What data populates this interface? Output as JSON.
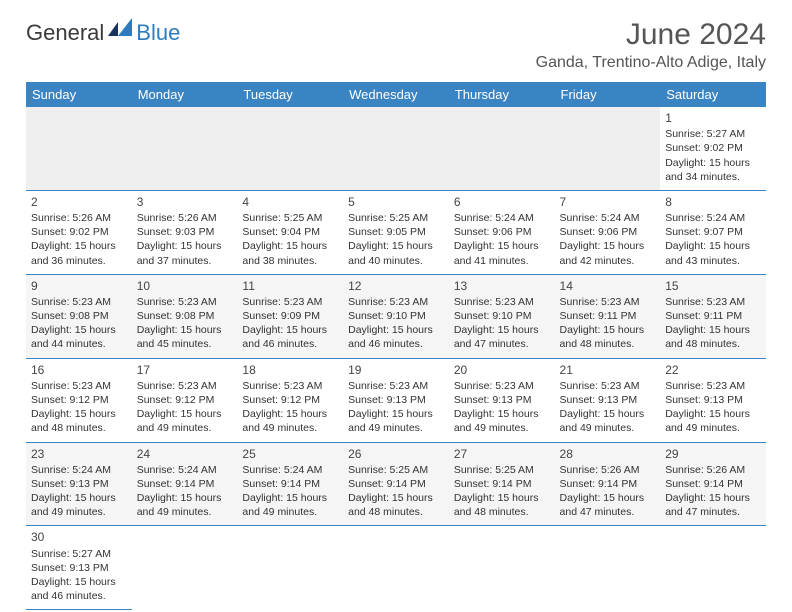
{
  "brand": {
    "part1": "General",
    "part2": "Blue"
  },
  "title": "June 2024",
  "location": "Ganda, Trentino-Alto Adige, Italy",
  "colors": {
    "header_bg": "#3b84c4",
    "header_text": "#ffffff",
    "brand_gray": "#3a3a3a",
    "brand_blue": "#2f7bbf",
    "text": "#333333",
    "grid_line": "#3b84c4",
    "alt_row_bg": "#efefef"
  },
  "day_headers": [
    "Sunday",
    "Monday",
    "Tuesday",
    "Wednesday",
    "Thursday",
    "Friday",
    "Saturday"
  ],
  "labels": {
    "sunrise": "Sunrise:",
    "sunset": "Sunset:",
    "daylight": "Daylight:"
  },
  "weeks": [
    [
      null,
      null,
      null,
      null,
      null,
      null,
      {
        "n": 1,
        "rise": "5:27 AM",
        "set": "9:02 PM",
        "dl": "15 hours and 34 minutes."
      }
    ],
    [
      {
        "n": 2,
        "rise": "5:26 AM",
        "set": "9:02 PM",
        "dl": "15 hours and 36 minutes."
      },
      {
        "n": 3,
        "rise": "5:26 AM",
        "set": "9:03 PM",
        "dl": "15 hours and 37 minutes."
      },
      {
        "n": 4,
        "rise": "5:25 AM",
        "set": "9:04 PM",
        "dl": "15 hours and 38 minutes."
      },
      {
        "n": 5,
        "rise": "5:25 AM",
        "set": "9:05 PM",
        "dl": "15 hours and 40 minutes."
      },
      {
        "n": 6,
        "rise": "5:24 AM",
        "set": "9:06 PM",
        "dl": "15 hours and 41 minutes."
      },
      {
        "n": 7,
        "rise": "5:24 AM",
        "set": "9:06 PM",
        "dl": "15 hours and 42 minutes."
      },
      {
        "n": 8,
        "rise": "5:24 AM",
        "set": "9:07 PM",
        "dl": "15 hours and 43 minutes."
      }
    ],
    [
      {
        "n": 9,
        "rise": "5:23 AM",
        "set": "9:08 PM",
        "dl": "15 hours and 44 minutes."
      },
      {
        "n": 10,
        "rise": "5:23 AM",
        "set": "9:08 PM",
        "dl": "15 hours and 45 minutes."
      },
      {
        "n": 11,
        "rise": "5:23 AM",
        "set": "9:09 PM",
        "dl": "15 hours and 46 minutes."
      },
      {
        "n": 12,
        "rise": "5:23 AM",
        "set": "9:10 PM",
        "dl": "15 hours and 46 minutes."
      },
      {
        "n": 13,
        "rise": "5:23 AM",
        "set": "9:10 PM",
        "dl": "15 hours and 47 minutes."
      },
      {
        "n": 14,
        "rise": "5:23 AM",
        "set": "9:11 PM",
        "dl": "15 hours and 48 minutes."
      },
      {
        "n": 15,
        "rise": "5:23 AM",
        "set": "9:11 PM",
        "dl": "15 hours and 48 minutes."
      }
    ],
    [
      {
        "n": 16,
        "rise": "5:23 AM",
        "set": "9:12 PM",
        "dl": "15 hours and 48 minutes."
      },
      {
        "n": 17,
        "rise": "5:23 AM",
        "set": "9:12 PM",
        "dl": "15 hours and 49 minutes."
      },
      {
        "n": 18,
        "rise": "5:23 AM",
        "set": "9:12 PM",
        "dl": "15 hours and 49 minutes."
      },
      {
        "n": 19,
        "rise": "5:23 AM",
        "set": "9:13 PM",
        "dl": "15 hours and 49 minutes."
      },
      {
        "n": 20,
        "rise": "5:23 AM",
        "set": "9:13 PM",
        "dl": "15 hours and 49 minutes."
      },
      {
        "n": 21,
        "rise": "5:23 AM",
        "set": "9:13 PM",
        "dl": "15 hours and 49 minutes."
      },
      {
        "n": 22,
        "rise": "5:23 AM",
        "set": "9:13 PM",
        "dl": "15 hours and 49 minutes."
      }
    ],
    [
      {
        "n": 23,
        "rise": "5:24 AM",
        "set": "9:13 PM",
        "dl": "15 hours and 49 minutes."
      },
      {
        "n": 24,
        "rise": "5:24 AM",
        "set": "9:14 PM",
        "dl": "15 hours and 49 minutes."
      },
      {
        "n": 25,
        "rise": "5:24 AM",
        "set": "9:14 PM",
        "dl": "15 hours and 49 minutes."
      },
      {
        "n": 26,
        "rise": "5:25 AM",
        "set": "9:14 PM",
        "dl": "15 hours and 48 minutes."
      },
      {
        "n": 27,
        "rise": "5:25 AM",
        "set": "9:14 PM",
        "dl": "15 hours and 48 minutes."
      },
      {
        "n": 28,
        "rise": "5:26 AM",
        "set": "9:14 PM",
        "dl": "15 hours and 47 minutes."
      },
      {
        "n": 29,
        "rise": "5:26 AM",
        "set": "9:14 PM",
        "dl": "15 hours and 47 minutes."
      }
    ],
    [
      {
        "n": 30,
        "rise": "5:27 AM",
        "set": "9:13 PM",
        "dl": "15 hours and 46 minutes."
      },
      null,
      null,
      null,
      null,
      null,
      null
    ]
  ]
}
